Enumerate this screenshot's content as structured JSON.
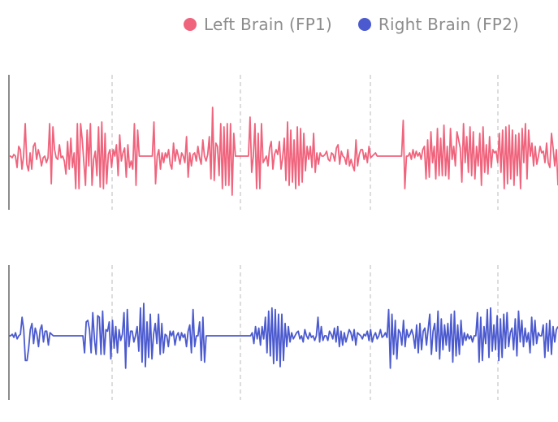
{
  "legend": {
    "left_label": "Left Brain (FP1)",
    "right_label": "Right Brain (FP2)"
  },
  "colors": {
    "left": "#f0637c",
    "right": "#4b5acf",
    "axis": "#666666",
    "grid": "#bbbbbb"
  },
  "chart_data": {
    "type": "line",
    "layout": "two stacked panels, one series each",
    "grid": "vertical dashed lines",
    "axes": "no tick labels",
    "series": [
      {
        "name": "Left Brain (FP1)",
        "values": [
          0.0,
          0.0,
          -0.05,
          0.05,
          0.0,
          -0.35,
          0.3,
          0.2,
          -0.4,
          0.0,
          1.0,
          -0.25,
          -0.45,
          0.1,
          -0.4,
          0.3,
          0.4,
          -0.1,
          0.2,
          0.0,
          -0.3,
          -0.05,
          0.0,
          -0.2,
          -0.05,
          1.0,
          -0.85,
          0.9,
          0.2,
          -0.05,
          -0.1,
          0.35,
          -0.05,
          0.0,
          -0.15,
          -0.55,
          0.45,
          -0.4,
          0.55,
          -0.35,
          0.1,
          -1.0,
          1.0,
          -1.0,
          1.0,
          0.5,
          -0.2,
          -0.9,
          0.8,
          -0.3,
          1.0,
          -0.9,
          -0.1,
          0.15,
          -0.6,
          0.9,
          -0.95,
          1.05,
          -1.0,
          0.7,
          -0.85,
          0.05,
          0.2,
          -0.35,
          0.2,
          0.0,
          0.35,
          -0.6,
          0.65,
          -0.15,
          0.1,
          0.25,
          -0.65,
          0.35,
          -0.35,
          -0.15,
          -0.4,
          1.0,
          -0.9,
          0.8,
          0.0,
          0.0,
          0.0,
          0.0,
          0.0,
          0.0,
          0.0,
          0.0,
          0.0,
          1.05,
          -0.85,
          0.0,
          0.2,
          -0.4,
          0.1,
          -0.2,
          0.1,
          -0.05,
          0.2,
          -0.25,
          -0.4,
          0.4,
          -0.15,
          0.2,
          0.0,
          -0.25,
          0.1,
          0.0,
          -0.2,
          0.6,
          -0.65,
          0.1,
          -0.3,
          0.05,
          0.1,
          -0.15,
          0.3,
          -0.05,
          -0.25,
          0.5,
          0.0,
          -0.15,
          0.05,
          0.6,
          -0.7,
          1.5,
          -0.75,
          0.4,
          0.3,
          -0.6,
          1.0,
          -1.0,
          0.9,
          -0.9,
          1.0,
          -0.9,
          1.0,
          -1.2,
          0.7,
          0.0,
          0.0,
          0.0,
          0.0,
          0.0,
          0.0,
          0.0,
          0.0,
          0.0,
          1.2,
          -0.5,
          0.0,
          1.0,
          -1.0,
          0.7,
          -1.0,
          1.0,
          -0.2,
          -0.1,
          0.0,
          -0.3,
          0.25,
          0.45,
          -0.4,
          0.05,
          0.2,
          0.05,
          0.45,
          -0.4,
          -0.05,
          0.55,
          -0.75,
          1.05,
          -0.9,
          0.8,
          -0.8,
          0.5,
          -1.0,
          0.9,
          -0.9,
          0.85,
          -0.8,
          0.7,
          -0.45,
          0.3,
          -0.1,
          0.3,
          -0.35,
          0.7,
          -0.5,
          0.1,
          -0.25,
          0.1,
          0.0,
          0.0,
          0.05,
          0.15,
          -0.1,
          -0.15,
          0.1,
          0.05,
          -0.15,
          0.25,
          0.35,
          -0.25,
          0.15,
          0.0,
          -0.05,
          -0.25,
          0.2,
          -0.3,
          -0.1,
          -0.3,
          -0.45,
          0.5,
          -0.3,
          0.05,
          0.2,
          0.2,
          -0.1,
          0.1,
          -0.2,
          0.3,
          -0.05,
          0.0,
          0.05,
          0.1,
          0.0,
          0.0,
          0.0,
          0.0,
          0.0,
          0.0,
          0.0,
          0.0,
          0.0,
          0.0,
          0.0,
          0.0,
          0.0,
          0.0,
          0.0,
          0.0,
          1.1,
          -1.0,
          0.0,
          0.0,
          0.1,
          -0.1,
          0.2,
          -0.05,
          0.15,
          0.0,
          0.1,
          -0.1,
          0.2,
          0.3,
          -0.7,
          0.5,
          -0.65,
          0.75,
          -0.2,
          0.3,
          -0.7,
          0.85,
          -0.6,
          0.55,
          -0.6,
          0.95,
          -0.6,
          0.3,
          -0.7,
          0.85,
          -0.1,
          0.3,
          -0.3,
          0.75,
          0.5,
          0.25,
          -0.8,
          1.0,
          -0.2,
          0.6,
          -0.5,
          0.9,
          -0.6,
          0.75,
          -0.7,
          0.3,
          -0.3,
          0.7,
          -0.9,
          0.9,
          -0.5,
          0.35,
          -0.55,
          0.6,
          -0.35,
          0.2,
          0.1,
          0.15,
          -0.2,
          0.7,
          -0.5,
          0.8,
          -1.0,
          0.9,
          -0.85,
          0.95,
          -0.7,
          0.8,
          -0.9,
          0.65,
          -0.6,
          0.7,
          -1.0,
          0.85,
          -0.2,
          1.0,
          -0.7,
          0.8,
          0.0,
          0.4,
          -0.3,
          0.3,
          -0.25,
          0.0,
          0.3,
          0.1,
          0.15,
          -0.2,
          0.4,
          -0.2,
          -0.35,
          0.7,
          0.25,
          -0.3,
          0.2,
          -0.9
        ]
      },
      {
        "name": "Right Brain (FP2)",
        "values": [
          0.0,
          0.0,
          0.05,
          -0.05,
          0.1,
          -0.1,
          0.0,
          0.05,
          0.6,
          0.2,
          -0.8,
          -0.8,
          -0.4,
          0.2,
          0.4,
          -0.25,
          0.25,
          0.05,
          -0.35,
          0.2,
          0.35,
          -0.2,
          0.15,
          0.15,
          -0.3,
          0.1,
          0.05,
          0.0,
          0.0,
          0.0,
          0.0,
          0.0,
          0.0,
          0.0,
          0.0,
          0.0,
          0.0,
          0.0,
          0.0,
          0.0,
          0.0,
          0.0,
          0.0,
          0.0,
          0.0,
          0.0,
          -0.55,
          0.45,
          0.5,
          0.2,
          -0.55,
          0.75,
          -0.1,
          -0.6,
          0.65,
          0.6,
          -0.6,
          0.8,
          -0.6,
          0.2,
          0.15,
          0.45,
          -0.75,
          0.5,
          -0.4,
          0.3,
          -0.55,
          0.2,
          -0.15,
          0.05,
          0.75,
          -1.05,
          0.85,
          -0.35,
          0.15,
          0.15,
          -0.2,
          0.0,
          0.3,
          -0.5,
          0.9,
          -0.85,
          1.05,
          -1.0,
          0.45,
          -0.7,
          0.7,
          -0.75,
          0.05,
          0.4,
          -0.25,
          0.7,
          -0.6,
          0.4,
          -0.55,
          0.05,
          0.0,
          -0.35,
          0.15,
          0.0,
          0.15,
          -0.3,
          0.0,
          0.1,
          -0.15,
          0.1,
          -0.05,
          0.05,
          -0.35,
          0.15,
          0.35,
          -0.55,
          0.85,
          -0.35,
          0.0,
          0.0,
          0.45,
          -0.8,
          0.6,
          -0.85,
          0.0,
          0.0,
          0.0,
          0.0,
          0.0,
          0.0,
          0.0,
          0.0,
          0.0,
          0.0,
          0.0,
          0.0,
          0.0,
          0.0,
          0.0,
          0.0,
          0.0,
          0.0,
          0.0,
          0.0,
          0.0,
          0.0,
          0.0,
          0.0,
          0.0,
          0.0,
          0.0,
          0.0,
          0.1,
          -0.25,
          0.3,
          -0.1,
          0.25,
          -0.3,
          0.3,
          -0.1,
          0.6,
          -0.55,
          0.8,
          -0.65,
          0.9,
          -0.9,
          0.85,
          -0.8,
          0.7,
          -1.0,
          0.7,
          -0.8,
          0.4,
          -0.35,
          0.3,
          -0.2,
          0.1,
          -0.1,
          0.0,
          0.1,
          0.15,
          -0.1,
          0.0,
          -0.2,
          0.2,
          0.0,
          -0.1,
          0.1,
          -0.05,
          0.0,
          -0.15,
          0.0,
          0.6,
          -0.2,
          0.3,
          -0.15,
          0.0,
          0.0,
          -0.15,
          0.15,
          0.05,
          -0.1,
          0.25,
          -0.2,
          0.3,
          -0.35,
          0.15,
          -0.3,
          0.1,
          -0.2,
          0.0,
          0.2,
          0.1,
          -0.15,
          0.2,
          -0.3,
          0.1,
          0.05,
          0.0,
          -0.1,
          0.05,
          0.0,
          0.15,
          -0.15,
          0.2,
          -0.2,
          0.0,
          0.1,
          -0.1,
          0.0,
          0.2,
          -0.05,
          0.0,
          0.1,
          -0.05,
          0.85,
          -1.05,
          0.7,
          -0.6,
          0.5,
          -0.75,
          0.2,
          0.1,
          -0.3,
          0.5,
          -0.35,
          0.2,
          -0.05,
          0.05,
          0.2,
          0.0,
          -0.4,
          0.35,
          -0.55,
          0.4,
          -0.45,
          0.15,
          0.25,
          -0.3,
          0.2,
          0.7,
          -0.6,
          0.15,
          0.4,
          -0.5,
          0.8,
          -0.75,
          0.55,
          -0.45,
          0.35,
          -0.3,
          0.4,
          -0.5,
          0.7,
          -0.85,
          0.8,
          -0.65,
          0.35,
          -0.6,
          0.5,
          -0.3,
          0.1,
          -0.15,
          0.05,
          -0.1,
          0.0,
          -0.2,
          0.0,
          0.0,
          0.75,
          -0.85,
          0.6,
          -0.8,
          0.3,
          -0.25,
          0.85,
          -0.7,
          0.9,
          -0.5,
          0.35,
          -0.45,
          0.65,
          -0.8,
          0.55,
          -0.7,
          0.7,
          -0.4,
          0.75,
          -0.35,
          0.1,
          0.25,
          -0.45,
          0.55,
          -0.65,
          0.8,
          -0.2,
          0.5,
          -0.35,
          0.25,
          -0.2,
          0.1,
          -0.55,
          0.6,
          -0.3,
          0.5,
          -0.25,
          0.1,
          0.0,
          0.0,
          0.35,
          -0.7,
          0.4,
          -0.5,
          0.5,
          -0.6,
          0.3,
          -0.2,
          0.2,
          0.3
        ]
      }
    ]
  }
}
